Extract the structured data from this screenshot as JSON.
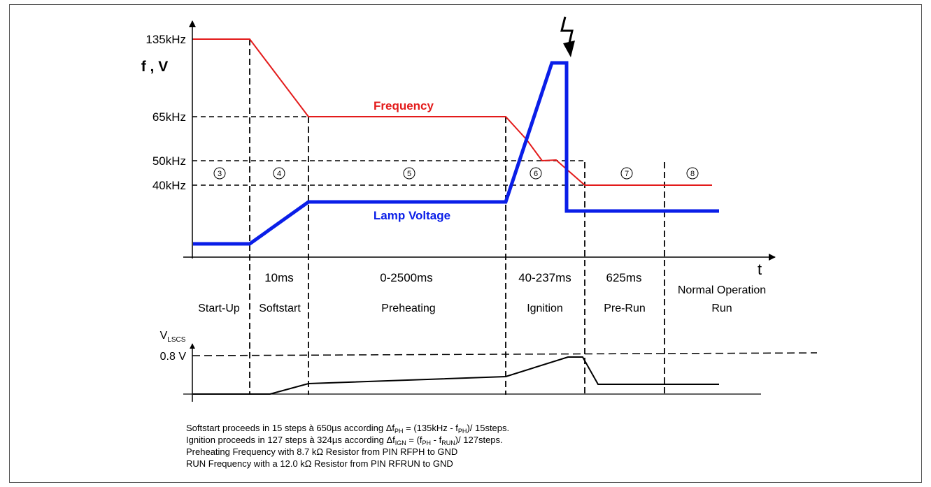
{
  "axes": {
    "y_label": "f , V",
    "x_label": "t",
    "y_ticks": [
      "135kHz",
      "65kHz",
      "50kHz",
      "40kHz"
    ],
    "lower_y_label_main": "V",
    "lower_y_label_sub": "LSCS",
    "lower_y_tick": "0.8 V"
  },
  "curves": {
    "frequency_label": "Frequency",
    "frequency_color": "#e31b1b",
    "lamp_voltage_label": "Lamp Voltage",
    "lamp_voltage_color": "#0a1ee8"
  },
  "phases": [
    {
      "num": "3",
      "duration": "",
      "name": "Start-Up",
      "name2": ""
    },
    {
      "num": "4",
      "duration": "10ms",
      "name": "Softstart",
      "name2": ""
    },
    {
      "num": "5",
      "duration": "0-2500ms",
      "name": "Preheating",
      "name2": ""
    },
    {
      "num": "6",
      "duration": "40-237ms",
      "name": "Ignition",
      "name2": ""
    },
    {
      "num": "7",
      "duration": "625ms",
      "name": "Pre-Run",
      "name2": ""
    },
    {
      "num": "8",
      "duration": "",
      "name": "Normal Operation",
      "name2": "Run"
    }
  ],
  "notes": {
    "softstart": {
      "a": "Softstart proceeds in  15 steps à 650µs according ",
      "delta": "Δf",
      "sub1": "PH",
      "b": " = (135kHz - f",
      "sub2": "PH",
      "c": ")/ 15steps."
    },
    "ignition": {
      "a": "Ignition proceeds in 127 steps à 324µs according ",
      "delta": "Δf",
      "sub1": "IGN",
      "b": " = (f",
      "sub2": "PH",
      "c": " - f",
      "sub3": "RUN",
      "d": ")/ 127steps."
    },
    "line3": "Preheating Frequency with 8.7 kΩ Resistor from PIN RFPH to GND",
    "line4": "RUN Frequency with a 12.0 kΩ Resistor from PIN RFRUN to GND"
  },
  "icons": {
    "ignition_spark": "lightning-bolt-icon"
  }
}
